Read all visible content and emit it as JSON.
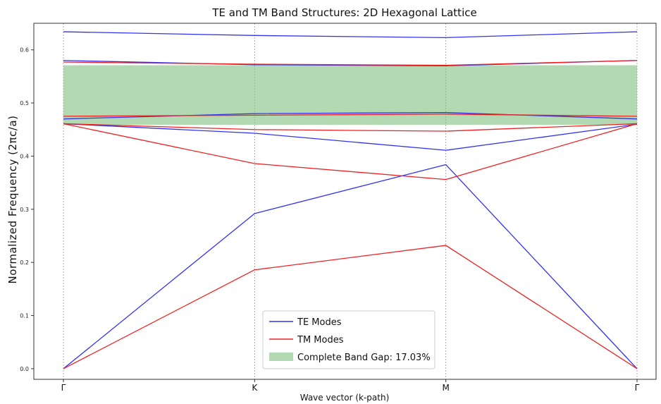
{
  "chart_data": {
    "type": "line",
    "title": "TE and TM Band Structures: 2D Hexagonal Lattice",
    "xlabel": "Wave vector (k-path)",
    "ylabel": "Normalized Frequency (2πc/a)",
    "categories": [
      "Γ",
      "K",
      "M",
      "Γ"
    ],
    "x": [
      0,
      1,
      2,
      3
    ],
    "ylim": [
      -0.02,
      0.65
    ],
    "yticks": [
      0.0,
      0.1,
      0.2,
      0.3,
      0.4,
      0.5,
      0.6
    ],
    "ytick_labels": [
      "0.0",
      "0.1",
      "0.2",
      "0.3",
      "0.4",
      "0.5",
      "0.6"
    ],
    "grid": "vertical",
    "legend_position": "lower-center",
    "colors": {
      "te": "#3333ee",
      "tm": "#ee2222",
      "gap": "#7fbf7f"
    },
    "series": [
      {
        "name": "TE Modes",
        "group": "te",
        "values": [
          0.0,
          0.292,
          0.384,
          0.0
        ]
      },
      {
        "group": "te",
        "values": [
          0.461,
          0.443,
          0.411,
          0.46
        ]
      },
      {
        "group": "te",
        "values": [
          0.47,
          0.48,
          0.482,
          0.47
        ]
      },
      {
        "group": "te",
        "values": [
          0.58,
          0.572,
          0.57,
          0.58
        ]
      },
      {
        "group": "te",
        "values": [
          0.634,
          0.627,
          0.623,
          0.634
        ]
      },
      {
        "name": "TM Modes",
        "group": "tm",
        "values": [
          0.0,
          0.186,
          0.232,
          0.0
        ]
      },
      {
        "group": "tm",
        "values": [
          0.461,
          0.386,
          0.356,
          0.461
        ]
      },
      {
        "group": "tm",
        "values": [
          0.461,
          0.45,
          0.447,
          0.461
        ]
      },
      {
        "group": "tm",
        "values": [
          0.475,
          0.477,
          0.479,
          0.475
        ]
      },
      {
        "group": "tm",
        "values": [
          0.577,
          0.573,
          0.571,
          0.58
        ]
      }
    ],
    "band_gap": {
      "label": "Complete Band Gap: 17.03%",
      "y_bottom": 0.459,
      "y_top": 0.571
    },
    "legend": [
      "TE Modes",
      "TM Modes",
      "Complete Band Gap: 17.03%"
    ]
  }
}
